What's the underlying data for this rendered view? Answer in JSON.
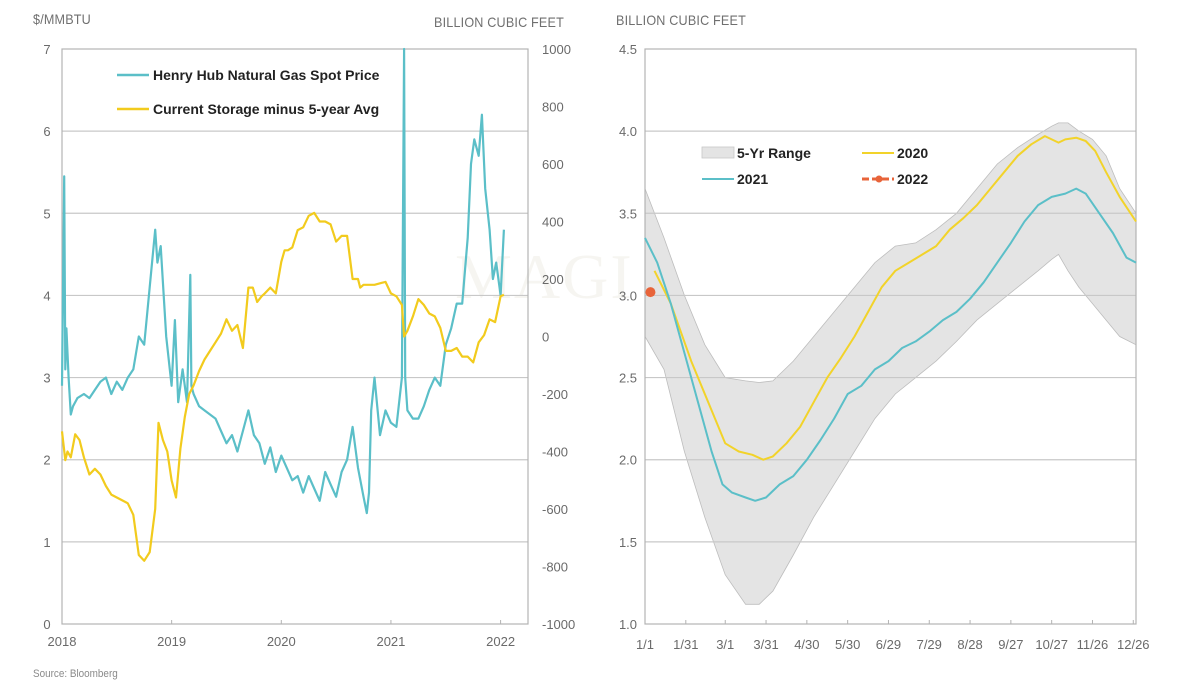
{
  "source": "Source: Bloomberg",
  "watermark": "MAGI",
  "chart_data": [
    {
      "type": "line",
      "title": "",
      "left_axis_label": "$/MMBTU",
      "right_axis_label": "BILLION CUBIC FEET",
      "x_ticks": [
        "2018",
        "2019",
        "2020",
        "2021",
        "2022"
      ],
      "xlim": [
        2018.0,
        2022.25
      ],
      "y_left_ticks": [
        "0",
        "1",
        "2",
        "3",
        "4",
        "5",
        "6",
        "7"
      ],
      "y_left_lim": [
        0,
        7
      ],
      "y_right_ticks": [
        "-1000",
        "-800",
        "-600",
        "-400",
        "-200",
        "0",
        "200",
        "400",
        "600",
        "800",
        "1000"
      ],
      "y_right_lim": [
        -1000,
        1000
      ],
      "grid": true,
      "legend_position": "top-left",
      "series": [
        {
          "name": "Henry Hub Natural Gas Spot Price",
          "axis": "left",
          "color": "#5bbfc8",
          "x": [
            2018.0,
            2018.02,
            2018.03,
            2018.04,
            2018.06,
            2018.08,
            2018.1,
            2018.14,
            2018.2,
            2018.25,
            2018.3,
            2018.35,
            2018.4,
            2018.45,
            2018.5,
            2018.55,
            2018.6,
            2018.65,
            2018.7,
            2018.75,
            2018.8,
            2018.85,
            2018.87,
            2018.9,
            2018.95,
            2019.0,
            2019.03,
            2019.06,
            2019.1,
            2019.14,
            2019.17,
            2019.18,
            2019.2,
            2019.25,
            2019.3,
            2019.35,
            2019.4,
            2019.45,
            2019.5,
            2019.55,
            2019.6,
            2019.65,
            2019.7,
            2019.75,
            2019.8,
            2019.85,
            2019.9,
            2019.95,
            2020.0,
            2020.05,
            2020.1,
            2020.15,
            2020.2,
            2020.25,
            2020.3,
            2020.35,
            2020.4,
            2020.45,
            2020.5,
            2020.55,
            2020.6,
            2020.65,
            2020.7,
            2020.75,
            2020.78,
            2020.8,
            2020.82,
            2020.85,
            2020.9,
            2020.95,
            2021.0,
            2021.05,
            2021.1,
            2021.12,
            2021.13,
            2021.15,
            2021.2,
            2021.25,
            2021.3,
            2021.35,
            2021.4,
            2021.45,
            2021.5,
            2021.55,
            2021.6,
            2021.65,
            2021.7,
            2021.73,
            2021.76,
            2021.8,
            2021.83,
            2021.86,
            2021.9,
            2021.93,
            2021.96,
            2022.0,
            2022.03
          ],
          "y": [
            2.9,
            5.45,
            3.1,
            3.6,
            3.0,
            2.55,
            2.65,
            2.75,
            2.8,
            2.75,
            2.85,
            2.95,
            3.0,
            2.8,
            2.95,
            2.85,
            3.0,
            3.1,
            3.5,
            3.4,
            4.1,
            4.8,
            4.4,
            4.6,
            3.5,
            2.9,
            3.7,
            2.7,
            3.1,
            2.7,
            4.25,
            2.9,
            2.8,
            2.65,
            2.6,
            2.55,
            2.5,
            2.35,
            2.2,
            2.3,
            2.1,
            2.35,
            2.6,
            2.3,
            2.2,
            1.95,
            2.15,
            1.85,
            2.05,
            1.9,
            1.75,
            1.8,
            1.6,
            1.8,
            1.65,
            1.5,
            1.85,
            1.7,
            1.55,
            1.85,
            2.0,
            2.4,
            1.9,
            1.55,
            1.35,
            1.6,
            2.6,
            3.0,
            2.3,
            2.6,
            2.45,
            2.4,
            3.0,
            7.0,
            3.0,
            2.6,
            2.5,
            2.5,
            2.65,
            2.85,
            3.0,
            2.9,
            3.4,
            3.6,
            3.9,
            3.9,
            4.7,
            5.6,
            5.9,
            5.7,
            6.2,
            5.3,
            4.8,
            4.2,
            4.4,
            4.0,
            4.8
          ]
        },
        {
          "name": "Current Storage minus 5-year Avg",
          "axis": "right",
          "color": "#f2cb1d",
          "x": [
            2018.0,
            2018.03,
            2018.05,
            2018.08,
            2018.12,
            2018.16,
            2018.2,
            2018.25,
            2018.3,
            2018.35,
            2018.4,
            2018.45,
            2018.5,
            2018.55,
            2018.6,
            2018.65,
            2018.7,
            2018.75,
            2018.8,
            2018.85,
            2018.88,
            2018.92,
            2018.96,
            2019.0,
            2019.04,
            2019.08,
            2019.12,
            2019.16,
            2019.2,
            2019.25,
            2019.3,
            2019.35,
            2019.4,
            2019.45,
            2019.5,
            2019.55,
            2019.6,
            2019.65,
            2019.7,
            2019.74,
            2019.78,
            2019.82,
            2019.85,
            2019.9,
            2019.95,
            2020.0,
            2020.03,
            2020.06,
            2020.1,
            2020.15,
            2020.2,
            2020.25,
            2020.3,
            2020.35,
            2020.4,
            2020.45,
            2020.5,
            2020.55,
            2020.6,
            2020.65,
            2020.7,
            2020.72,
            2020.75,
            2020.8,
            2020.85,
            2020.9,
            2020.95,
            2021.0,
            2021.05,
            2021.1,
            2021.12,
            2021.15,
            2021.2,
            2021.25,
            2021.3,
            2021.35,
            2021.4,
            2021.45,
            2021.5,
            2021.55,
            2021.6,
            2021.65,
            2021.7,
            2021.75,
            2021.8,
            2021.85,
            2021.9,
            2021.95,
            2022.0,
            2022.03
          ],
          "y": [
            -330,
            -430,
            -400,
            -420,
            -340,
            -360,
            -420,
            -480,
            -460,
            -480,
            -520,
            -550,
            -560,
            -570,
            -580,
            -620,
            -760,
            -780,
            -750,
            -600,
            -300,
            -360,
            -400,
            -500,
            -560,
            -390,
            -280,
            -200,
            -170,
            -120,
            -80,
            -50,
            -20,
            10,
            60,
            20,
            40,
            -40,
            170,
            170,
            120,
            140,
            150,
            170,
            150,
            260,
            300,
            300,
            310,
            370,
            380,
            420,
            430,
            400,
            400,
            390,
            330,
            350,
            350,
            200,
            200,
            170,
            180,
            180,
            180,
            185,
            190,
            150,
            140,
            110,
            0,
            20,
            70,
            130,
            110,
            80,
            70,
            30,
            -50,
            -50,
            -40,
            -70,
            -70,
            -90,
            -20,
            5,
            60,
            50,
            140,
            145
          ]
        }
      ]
    },
    {
      "type": "area",
      "title": "",
      "left_axis_label": "BILLION CUBIC FEET",
      "x_ticks": [
        "1/1",
        "1/31",
        "3/1",
        "3/31",
        "4/30",
        "5/30",
        "6/29",
        "7/29",
        "8/28",
        "9/27",
        "10/27",
        "11/26",
        "12/26"
      ],
      "x_tick_days": [
        1,
        31,
        60,
        90,
        120,
        150,
        180,
        210,
        240,
        270,
        300,
        330,
        360
      ],
      "xlim": [
        1,
        362
      ],
      "y_ticks": [
        "1.0",
        "1.5",
        "2.0",
        "2.5",
        "3.0",
        "3.5",
        "4.0",
        "4.5"
      ],
      "ylim": [
        1.0,
        4.5
      ],
      "grid": true,
      "legend_position": "top-left",
      "legend": [
        {
          "name": "5-Yr Range",
          "symbol": "box",
          "color": "#e4e4e4"
        },
        {
          "name": "2020",
          "symbol": "line",
          "color": "#f2d32a"
        },
        {
          "name": "2021",
          "symbol": "line",
          "color": "#5bbfc8"
        },
        {
          "name": "2022",
          "symbol": "line-marker",
          "color": "#e8643a"
        }
      ],
      "range": {
        "name": "5-Yr Range",
        "color": "#e4e4e4",
        "x": [
          1,
          15,
          30,
          45,
          60,
          75,
          85,
          95,
          110,
          125,
          140,
          155,
          170,
          185,
          200,
          215,
          230,
          245,
          260,
          275,
          290,
          300,
          305,
          312,
          320,
          330,
          340,
          350,
          362
        ],
        "low": [
          2.75,
          2.55,
          2.05,
          1.65,
          1.3,
          1.12,
          1.12,
          1.2,
          1.42,
          1.65,
          1.85,
          2.05,
          2.25,
          2.4,
          2.5,
          2.6,
          2.72,
          2.85,
          2.95,
          3.05,
          3.15,
          3.22,
          3.25,
          3.15,
          3.05,
          2.95,
          2.85,
          2.75,
          2.7
        ],
        "high": [
          3.65,
          3.35,
          3.0,
          2.7,
          2.5,
          2.48,
          2.47,
          2.48,
          2.6,
          2.75,
          2.9,
          3.05,
          3.2,
          3.3,
          3.32,
          3.4,
          3.5,
          3.65,
          3.8,
          3.9,
          3.98,
          4.03,
          4.05,
          4.05,
          4.0,
          3.95,
          3.85,
          3.65,
          3.5
        ]
      },
      "series": [
        {
          "name": "2020",
          "color": "#f2d32a",
          "x": [
            8,
            20,
            35,
            50,
            60,
            70,
            80,
            88,
            95,
            105,
            115,
            125,
            135,
            145,
            155,
            165,
            175,
            185,
            195,
            205,
            215,
            225,
            235,
            245,
            255,
            265,
            275,
            285,
            295,
            300,
            305,
            310,
            318,
            325,
            332,
            340,
            350,
            362
          ],
          "y": [
            3.15,
            2.95,
            2.6,
            2.3,
            2.1,
            2.05,
            2.03,
            2.0,
            2.02,
            2.1,
            2.2,
            2.35,
            2.5,
            2.62,
            2.75,
            2.9,
            3.05,
            3.15,
            3.2,
            3.25,
            3.3,
            3.4,
            3.47,
            3.55,
            3.65,
            3.75,
            3.85,
            3.92,
            3.97,
            3.95,
            3.93,
            3.95,
            3.96,
            3.94,
            3.88,
            3.75,
            3.6,
            3.45
          ]
        },
        {
          "name": "2021",
          "color": "#5bbfc8",
          "x": [
            1,
            10,
            20,
            30,
            40,
            50,
            58,
            65,
            75,
            82,
            90,
            100,
            110,
            120,
            130,
            140,
            150,
            160,
            170,
            180,
            190,
            200,
            210,
            220,
            230,
            240,
            250,
            260,
            270,
            280,
            290,
            300,
            310,
            318,
            325,
            335,
            345,
            355,
            362
          ],
          "y": [
            3.35,
            3.2,
            2.95,
            2.65,
            2.35,
            2.05,
            1.85,
            1.8,
            1.77,
            1.75,
            1.77,
            1.85,
            1.9,
            2.0,
            2.12,
            2.25,
            2.4,
            2.45,
            2.55,
            2.6,
            2.68,
            2.72,
            2.78,
            2.85,
            2.9,
            2.98,
            3.08,
            3.2,
            3.32,
            3.45,
            3.55,
            3.6,
            3.62,
            3.65,
            3.62,
            3.5,
            3.38,
            3.23,
            3.2
          ]
        },
        {
          "name": "2022",
          "color": "#e8643a",
          "x": [
            5
          ],
          "y": [
            3.02
          ]
        }
      ]
    }
  ]
}
